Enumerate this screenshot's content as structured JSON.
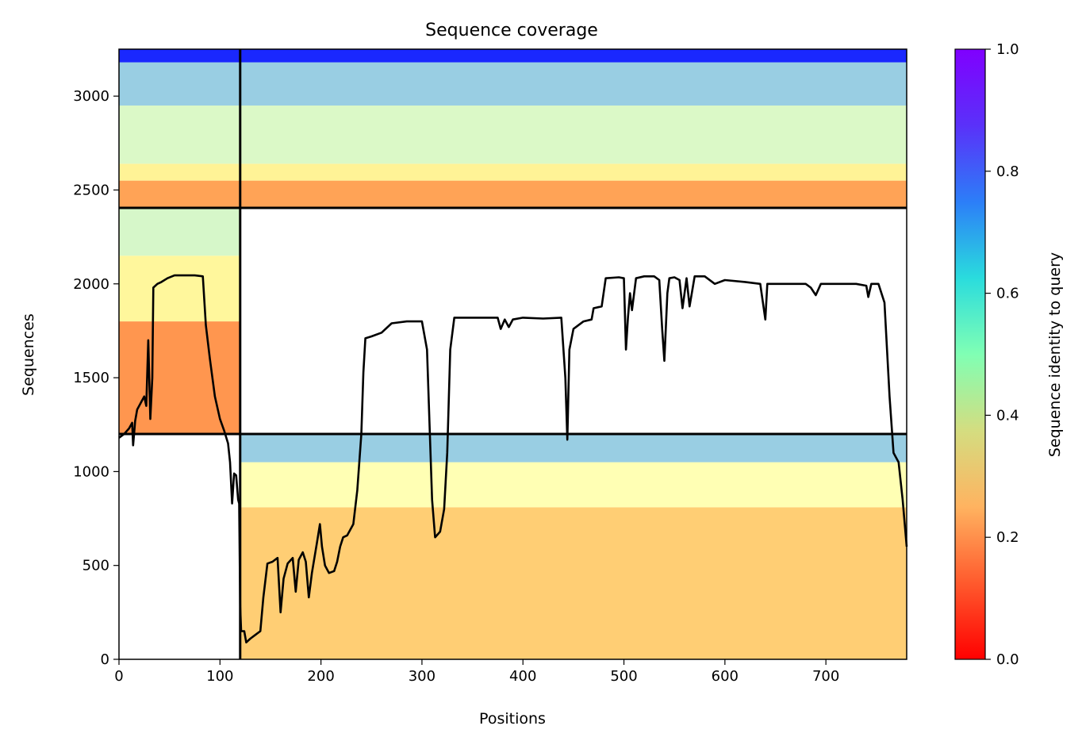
{
  "chart_data": {
    "type": "heatmap",
    "title": "Sequence coverage",
    "xlabel": "Positions",
    "ylabel": "Sequences",
    "xlim": [
      0,
      780
    ],
    "ylim": [
      0,
      3250
    ],
    "x_ticks": [
      0,
      100,
      200,
      300,
      400,
      500,
      600,
      700
    ],
    "y_ticks": [
      0,
      500,
      1000,
      1500,
      2000,
      2500,
      3000
    ],
    "colorbar": {
      "label": "Sequence identity to query",
      "range": [
        0,
        1
      ],
      "ticks": [
        "0.0",
        "0.2",
        "0.4",
        "0.6",
        "0.8",
        "1.0"
      ],
      "colormap": "rainbow_r"
    },
    "domain_boundaries": {
      "vertical_x": [
        120
      ],
      "horizontal_y": [
        1200,
        2405
      ]
    },
    "blocks": [
      {
        "x0": 0,
        "x1": 120,
        "y0": 2405,
        "y1": 3250,
        "bands": [
          {
            "y0": 2405,
            "y1": 2550,
            "identity": 0.22
          },
          {
            "y0": 2550,
            "y1": 2640,
            "identity": 0.4
          },
          {
            "y0": 2640,
            "y1": 2950,
            "identity": 0.57
          },
          {
            "y0": 2950,
            "y1": 3180,
            "identity": 0.7
          },
          {
            "y0": 3180,
            "y1": 3250,
            "identity": 0.95
          }
        ]
      },
      {
        "x0": 120,
        "x1": 780,
        "y0": 2405,
        "y1": 3250,
        "bands": [
          {
            "y0": 2405,
            "y1": 2550,
            "identity": 0.22
          },
          {
            "y0": 2550,
            "y1": 2640,
            "identity": 0.4
          },
          {
            "y0": 2640,
            "y1": 2950,
            "identity": 0.57
          },
          {
            "y0": 2950,
            "y1": 3180,
            "identity": 0.7
          },
          {
            "y0": 3180,
            "y1": 3250,
            "identity": 0.95
          }
        ]
      },
      {
        "x0": 0,
        "x1": 120,
        "y0": 1200,
        "y1": 2405,
        "bands": [
          {
            "y0": 1200,
            "y1": 1800,
            "identity": 0.2
          },
          {
            "y0": 1800,
            "y1": 2150,
            "identity": 0.42
          },
          {
            "y0": 2150,
            "y1": 2405,
            "identity": 0.58
          }
        ]
      },
      {
        "x0": 120,
        "x1": 780,
        "y0": 0,
        "y1": 1200,
        "bands": [
          {
            "y0": 0,
            "y1": 810,
            "identity": 0.3
          },
          {
            "y0": 810,
            "y1": 1050,
            "identity": 0.5
          },
          {
            "y0": 1050,
            "y1": 1200,
            "identity": 0.7
          }
        ]
      }
    ],
    "coverage_line": {
      "name": "coverage",
      "points": [
        [
          0,
          1180
        ],
        [
          5,
          1200
        ],
        [
          10,
          1230
        ],
        [
          13,
          1260
        ],
        [
          14,
          1140
        ],
        [
          16,
          1270
        ],
        [
          18,
          1330
        ],
        [
          22,
          1370
        ],
        [
          25,
          1400
        ],
        [
          27,
          1350
        ],
        [
          29,
          1700
        ],
        [
          31,
          1280
        ],
        [
          33,
          1500
        ],
        [
          34,
          1980
        ],
        [
          38,
          2000
        ],
        [
          42,
          2010
        ],
        [
          48,
          2030
        ],
        [
          55,
          2045
        ],
        [
          65,
          2045
        ],
        [
          75,
          2045
        ],
        [
          83,
          2040
        ],
        [
          86,
          1780
        ],
        [
          90,
          1600
        ],
        [
          95,
          1400
        ],
        [
          100,
          1280
        ],
        [
          104,
          1220
        ],
        [
          108,
          1150
        ],
        [
          110,
          1050
        ],
        [
          112,
          830
        ],
        [
          114,
          990
        ],
        [
          116,
          980
        ],
        [
          118,
          850
        ],
        [
          119,
          830
        ],
        [
          120,
          280
        ],
        [
          121,
          150
        ],
        [
          124,
          150
        ],
        [
          126,
          90
        ],
        [
          130,
          110
        ],
        [
          135,
          130
        ],
        [
          140,
          150
        ],
        [
          143,
          330
        ],
        [
          147,
          510
        ],
        [
          152,
          520
        ],
        [
          157,
          540
        ],
        [
          160,
          250
        ],
        [
          163,
          430
        ],
        [
          167,
          510
        ],
        [
          172,
          540
        ],
        [
          175,
          360
        ],
        [
          178,
          530
        ],
        [
          182,
          570
        ],
        [
          185,
          520
        ],
        [
          188,
          330
        ],
        [
          191,
          460
        ],
        [
          196,
          620
        ],
        [
          199,
          720
        ],
        [
          201,
          600
        ],
        [
          204,
          500
        ],
        [
          208,
          460
        ],
        [
          213,
          470
        ],
        [
          216,
          520
        ],
        [
          219,
          600
        ],
        [
          222,
          650
        ],
        [
          226,
          660
        ],
        [
          232,
          720
        ],
        [
          236,
          900
        ],
        [
          240,
          1200
        ],
        [
          242,
          1530
        ],
        [
          244,
          1710
        ],
        [
          250,
          1720
        ],
        [
          260,
          1740
        ],
        [
          270,
          1790
        ],
        [
          285,
          1800
        ],
        [
          300,
          1800
        ],
        [
          305,
          1650
        ],
        [
          310,
          850
        ],
        [
          313,
          650
        ],
        [
          318,
          680
        ],
        [
          322,
          800
        ],
        [
          325,
          1100
        ],
        [
          328,
          1650
        ],
        [
          332,
          1820
        ],
        [
          340,
          1820
        ],
        [
          360,
          1820
        ],
        [
          375,
          1820
        ],
        [
          378,
          1760
        ],
        [
          382,
          1810
        ],
        [
          386,
          1770
        ],
        [
          390,
          1810
        ],
        [
          400,
          1820
        ],
        [
          420,
          1815
        ],
        [
          438,
          1820
        ],
        [
          442,
          1500
        ],
        [
          444,
          1170
        ],
        [
          446,
          1650
        ],
        [
          450,
          1760
        ],
        [
          460,
          1800
        ],
        [
          468,
          1810
        ],
        [
          470,
          1870
        ],
        [
          478,
          1880
        ],
        [
          482,
          2030
        ],
        [
          495,
          2035
        ],
        [
          500,
          2030
        ],
        [
          502,
          1650
        ],
        [
          504,
          1820
        ],
        [
          506,
          1950
        ],
        [
          508,
          1860
        ],
        [
          512,
          2030
        ],
        [
          520,
          2040
        ],
        [
          530,
          2040
        ],
        [
          535,
          2020
        ],
        [
          538,
          1750
        ],
        [
          540,
          1590
        ],
        [
          543,
          1950
        ],
        [
          545,
          2030
        ],
        [
          550,
          2035
        ],
        [
          555,
          2020
        ],
        [
          558,
          1870
        ],
        [
          562,
          2030
        ],
        [
          565,
          1880
        ],
        [
          570,
          2040
        ],
        [
          580,
          2040
        ],
        [
          590,
          2000
        ],
        [
          600,
          2020
        ],
        [
          620,
          2010
        ],
        [
          635,
          2000
        ],
        [
          640,
          1810
        ],
        [
          642,
          2000
        ],
        [
          660,
          2000
        ],
        [
          680,
          2000
        ],
        [
          685,
          1980
        ],
        [
          690,
          1940
        ],
        [
          695,
          2000
        ],
        [
          710,
          2000
        ],
        [
          730,
          2000
        ],
        [
          740,
          1990
        ],
        [
          742,
          1930
        ],
        [
          745,
          2000
        ],
        [
          752,
          2000
        ],
        [
          758,
          1900
        ],
        [
          763,
          1400
        ],
        [
          767,
          1100
        ],
        [
          772,
          1050
        ],
        [
          776,
          850
        ],
        [
          780,
          600
        ]
      ]
    }
  }
}
